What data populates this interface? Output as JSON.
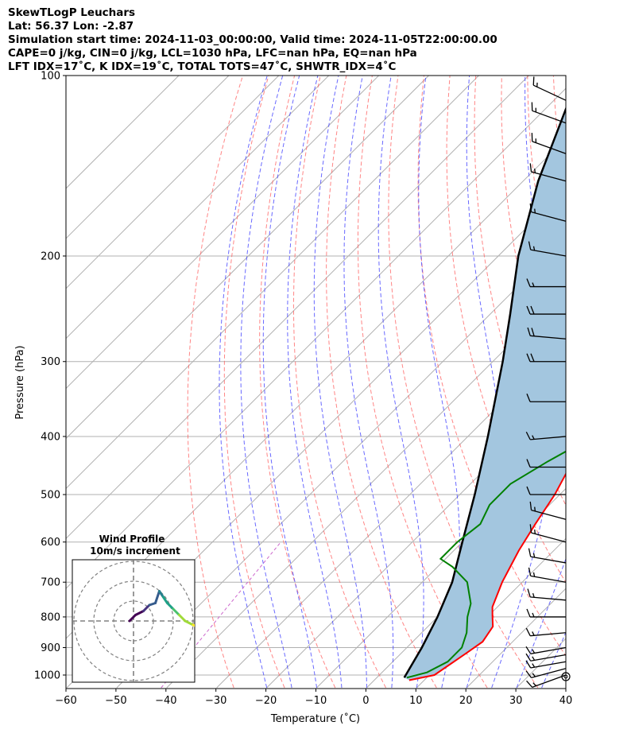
{
  "header": {
    "line1": "SkewTLogP Leuchars",
    "line2": "Lat: 56.37   Lon: -2.87",
    "line3": "Simulation start time: 2024-11-03_00:00:00, Valid time: 2024-11-05T22:00:00.00",
    "line4": "CAPE=0 j/kg, CIN=0 j/kg, LCL=1030 hPa, LFC=nan hPa, EQ=nan hPa",
    "line5": "LFT IDX=17˚C, K IDX=19˚C, TOTAL TOTS=47˚C, SHWTR_IDX=4˚C"
  },
  "chart_data": {
    "type": "line",
    "xlabel": "Temperature (˚C)",
    "ylabel": "Pressure (hPa)",
    "xlim": [
      -60,
      40
    ],
    "ylim": [
      1050,
      100
    ],
    "y_scale": "log",
    "grid": true,
    "x_ticks": [
      -60,
      -50,
      -40,
      -30,
      -20,
      -10,
      0,
      10,
      20,
      30,
      40
    ],
    "y_ticks": [
      100,
      200,
      300,
      400,
      500,
      600,
      700,
      800,
      900,
      1000
    ],
    "temperature": {
      "color": "#ff0000",
      "points": [
        [
          7,
          1020
        ],
        [
          11,
          1000
        ],
        [
          13,
          920
        ],
        [
          14,
          880
        ],
        [
          13,
          830
        ],
        [
          11,
          800
        ],
        [
          9,
          770
        ],
        [
          6,
          700
        ],
        [
          3,
          620
        ],
        [
          1,
          560
        ],
        [
          -1,
          500
        ],
        [
          -3,
          460
        ],
        [
          -6,
          420
        ],
        [
          -10,
          380
        ],
        [
          -13,
          340
        ],
        [
          -16,
          300
        ],
        [
          -19,
          280
        ],
        [
          -23,
          250
        ],
        [
          -27,
          230
        ],
        [
          -28,
          220
        ],
        [
          -30,
          210
        ],
        [
          -32,
          200
        ],
        [
          -36,
          180
        ],
        [
          -40,
          160
        ],
        [
          -46,
          140
        ],
        [
          -50,
          130
        ],
        [
          -54,
          115
        ],
        [
          -57,
          110
        ],
        [
          -60,
          100
        ]
      ]
    },
    "dewpoint": {
      "color": "#008000",
      "points": [
        [
          6,
          1010
        ],
        [
          9,
          990
        ],
        [
          11,
          950
        ],
        [
          11,
          900
        ],
        [
          9,
          850
        ],
        [
          6,
          800
        ],
        [
          4,
          760
        ],
        [
          -1,
          700
        ],
        [
          -7,
          660
        ],
        [
          -11,
          640
        ],
        [
          -11,
          600
        ],
        [
          -10,
          560
        ],
        [
          -12,
          520
        ],
        [
          -12,
          480
        ],
        [
          -9,
          440
        ],
        [
          -6,
          410
        ],
        [
          -11,
          360
        ],
        [
          -19,
          330
        ],
        [
          -23,
          300
        ],
        [
          -25,
          280
        ],
        [
          -27,
          250
        ],
        [
          -27,
          230
        ],
        [
          -32,
          200
        ],
        [
          -34,
          190
        ],
        [
          -35,
          180
        ],
        [
          -40,
          160
        ],
        [
          -46,
          150
        ],
        [
          -60,
          100
        ]
      ]
    },
    "parcel": {
      "color": "#000000",
      "points": [
        [
          5.5,
          1010
        ],
        [
          3,
          900
        ],
        [
          0,
          800
        ],
        [
          -4,
          700
        ],
        [
          -10,
          600
        ],
        [
          -17,
          500
        ],
        [
          -26,
          400
        ],
        [
          -38,
          300
        ],
        [
          -46,
          250
        ],
        [
          -56,
          200
        ],
        [
          -67,
          150
        ],
        [
          -80,
          100
        ]
      ]
    },
    "shading_color": "#a3c6df",
    "dry_adiabats_color": "#ff6666",
    "moist_adiabats_color": "#5555ff",
    "mixing_ratio_color": "#cc66cc",
    "barbs": [
      {
        "p": 1000,
        "speed": 15,
        "dir": 250
      },
      {
        "p": 975,
        "speed": 15,
        "dir": 255
      },
      {
        "p": 950,
        "speed": 15,
        "dir": 260
      },
      {
        "p": 925,
        "speed": 15,
        "dir": 260
      },
      {
        "p": 900,
        "speed": 15,
        "dir": 260
      },
      {
        "p": 850,
        "speed": 15,
        "dir": 265
      },
      {
        "p": 800,
        "speed": 15,
        "dir": 270
      },
      {
        "p": 750,
        "speed": 15,
        "dir": 275
      },
      {
        "p": 700,
        "speed": 15,
        "dir": 280
      },
      {
        "p": 650,
        "speed": 15,
        "dir": 280
      },
      {
        "p": 600,
        "speed": 15,
        "dir": 285
      },
      {
        "p": 550,
        "speed": 15,
        "dir": 285
      },
      {
        "p": 500,
        "speed": 10,
        "dir": 270
      },
      {
        "p": 450,
        "speed": 10,
        "dir": 270
      },
      {
        "p": 400,
        "speed": 15,
        "dir": 265
      },
      {
        "p": 350,
        "speed": 10,
        "dir": 270
      },
      {
        "p": 300,
        "speed": 20,
        "dir": 270
      },
      {
        "p": 275,
        "speed": 20,
        "dir": 275
      },
      {
        "p": 250,
        "speed": 20,
        "dir": 270
      },
      {
        "p": 225,
        "speed": 15,
        "dir": 270
      },
      {
        "p": 200,
        "speed": 15,
        "dir": 280
      },
      {
        "p": 175,
        "speed": 15,
        "dir": 285
      },
      {
        "p": 150,
        "speed": 15,
        "dir": 285
      },
      {
        "p": 135,
        "speed": 15,
        "dir": 290
      },
      {
        "p": 120,
        "speed": 15,
        "dir": 290
      },
      {
        "p": 110,
        "speed": 15,
        "dir": 295
      }
    ],
    "hodograph": {
      "title": "Wind Profile",
      "subtitle": "10m/s increment",
      "points": [
        [
          -0.2,
          0.0
        ],
        [
          0.1,
          0.3
        ],
        [
          0.5,
          0.5
        ],
        [
          0.8,
          0.8
        ],
        [
          1.1,
          0.9
        ],
        [
          1.3,
          1.5
        ],
        [
          1.5,
          1.2
        ],
        [
          1.7,
          0.9
        ],
        [
          2.0,
          0.6
        ],
        [
          2.3,
          0.3
        ],
        [
          2.6,
          0.0
        ],
        [
          3.0,
          -0.2
        ],
        [
          3.5,
          -0.4
        ]
      ],
      "colors": [
        "#440154",
        "#46327e",
        "#365c8d",
        "#277f8e",
        "#1fa187",
        "#4ac16d",
        "#a0da39",
        "#fde725"
      ]
    }
  }
}
